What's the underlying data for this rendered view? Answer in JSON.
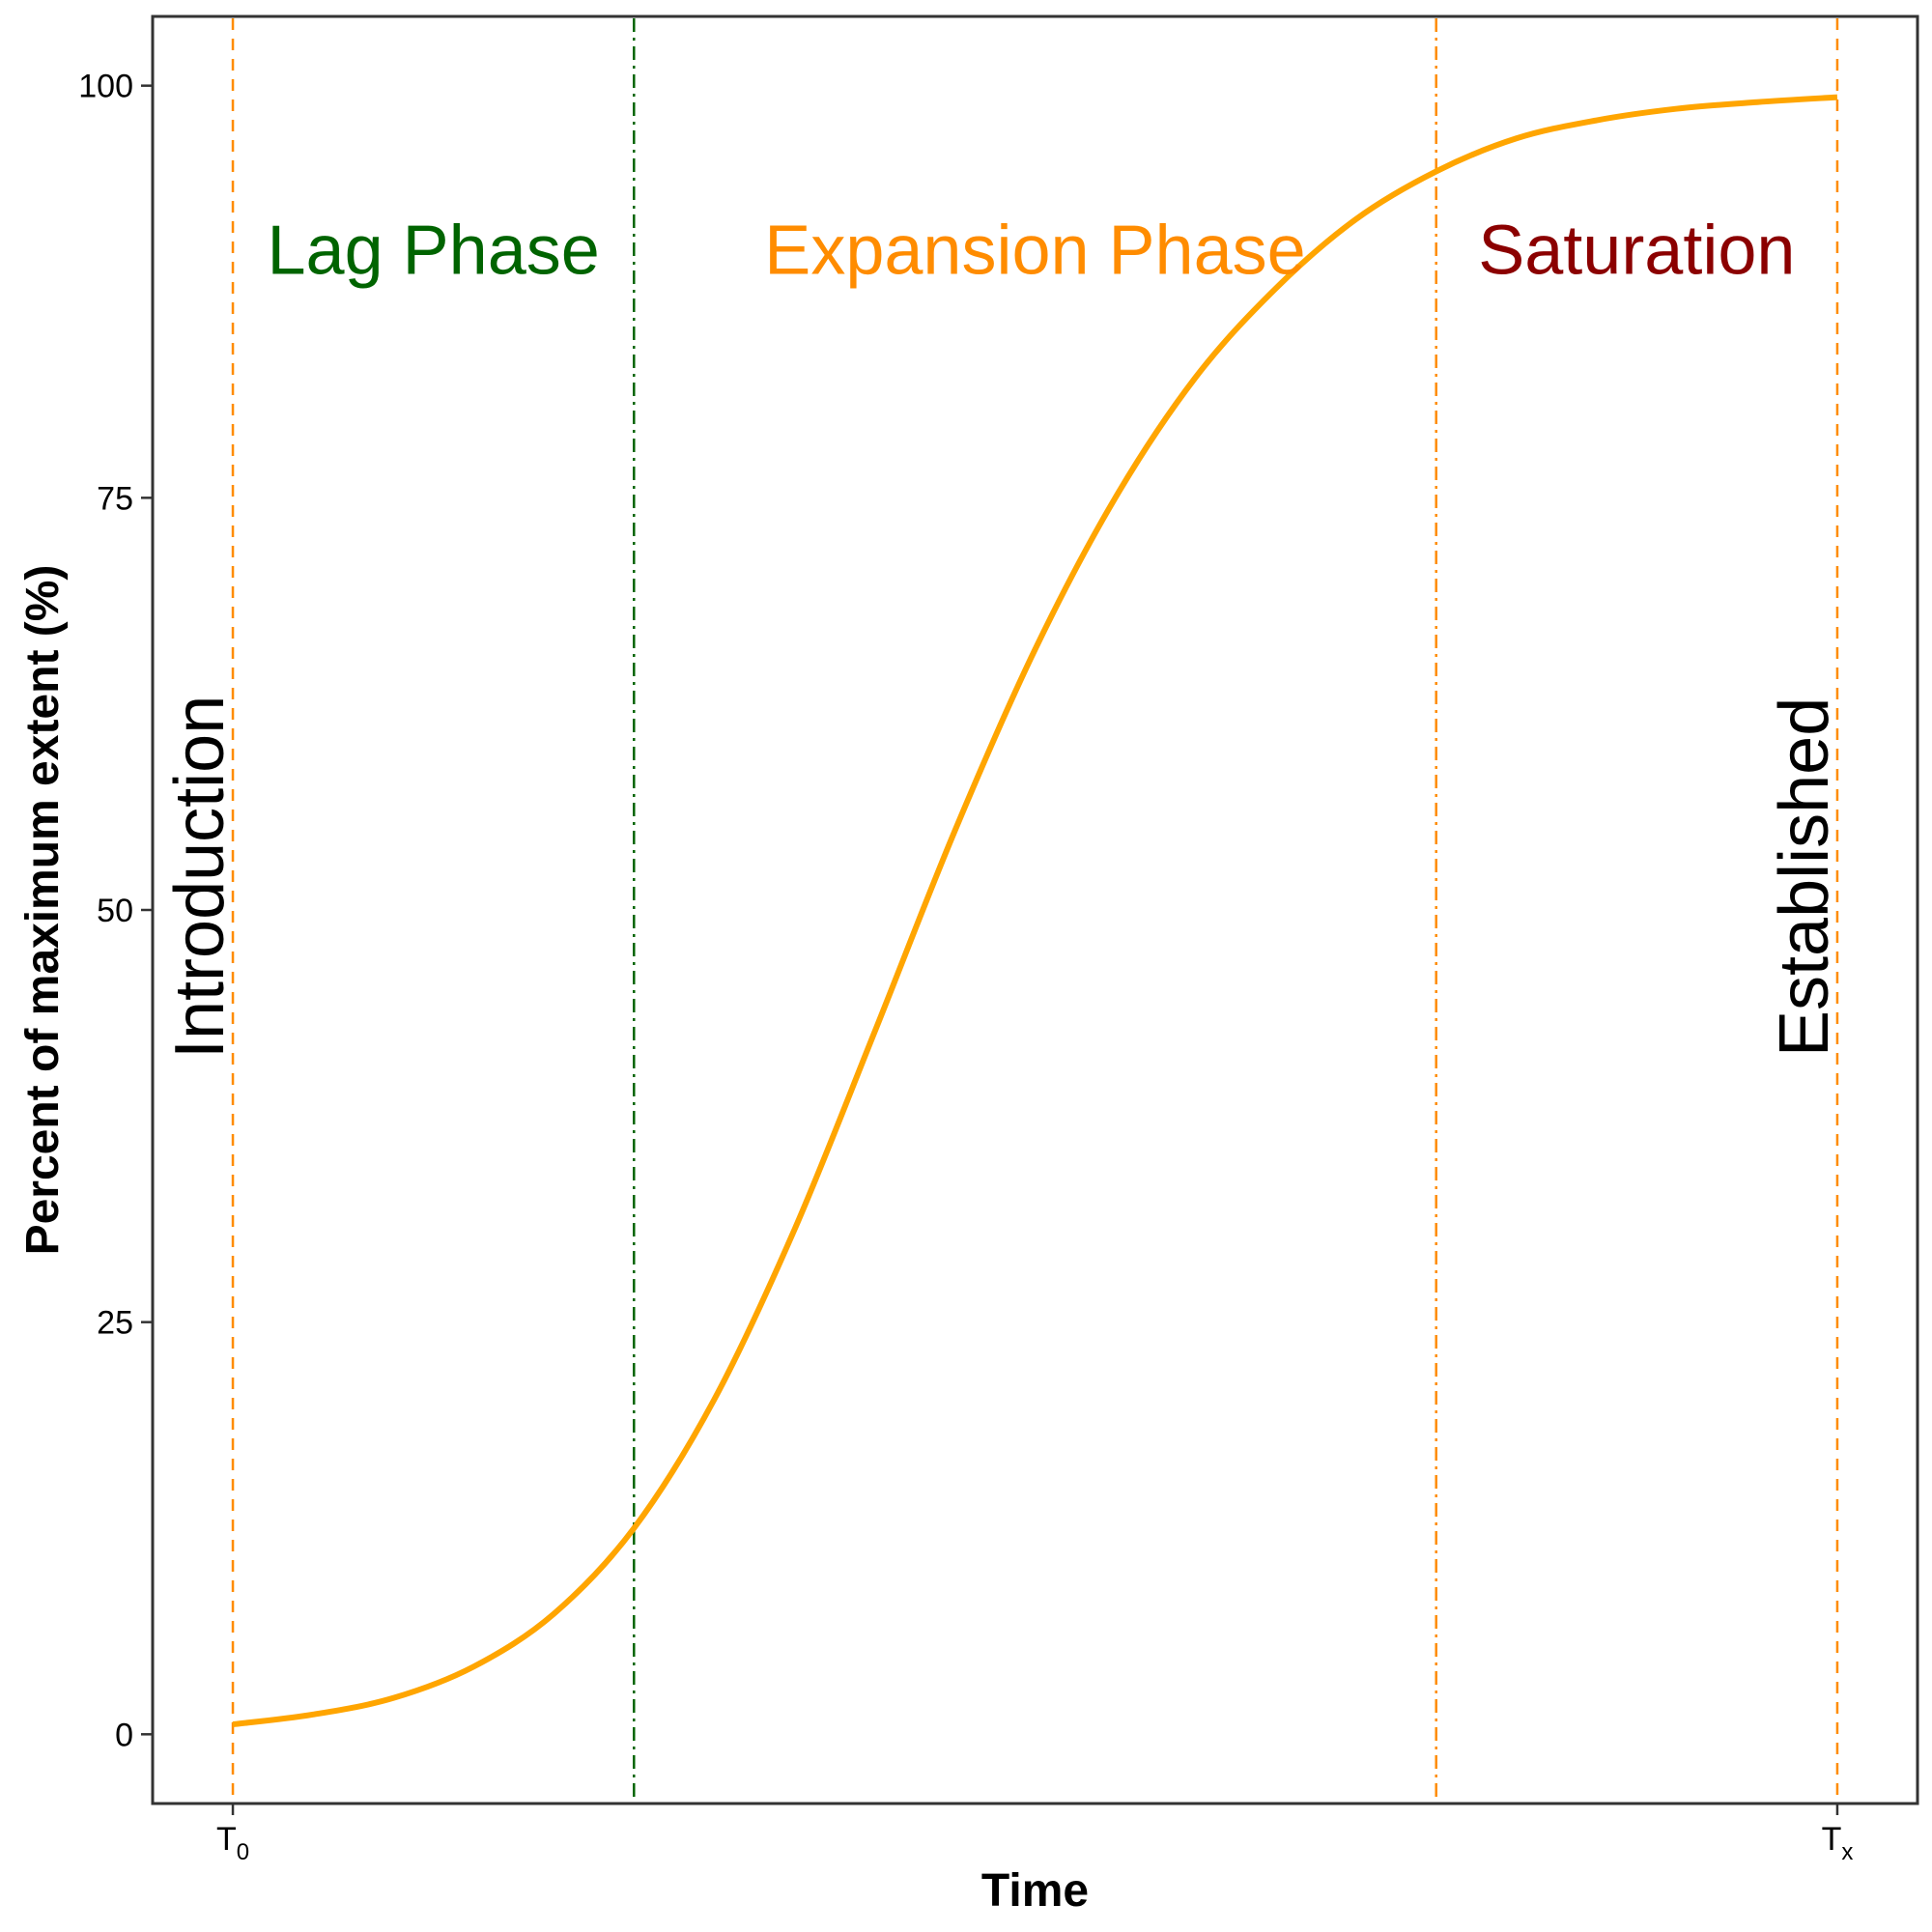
{
  "chart_data": {
    "type": "line",
    "title": "",
    "xlabel": "Time",
    "ylabel": "Percent of maximum extent (%)",
    "xlim": [
      -0.05,
      1.05
    ],
    "ylim": [
      -4.2,
      104.2
    ],
    "x_ticks": [
      {
        "x": 0,
        "base": "T",
        "sub": "0"
      },
      {
        "x": 1,
        "base": "T",
        "sub": "x"
      }
    ],
    "y_ticks": [
      0,
      25,
      50,
      75,
      100
    ],
    "grid": false,
    "series": [
      {
        "name": "",
        "color": "#FFA500",
        "x": [
          0,
          0.05,
          0.1,
          0.15,
          0.2,
          0.25,
          0.3,
          0.35,
          0.4,
          0.45,
          0.5,
          0.55,
          0.6,
          0.65,
          0.7,
          0.75,
          0.8,
          0.85,
          0.9,
          0.95,
          1
        ],
        "y": [
          0.6,
          1.2,
          2.2,
          4.1,
          7.3,
          12.5,
          20.3,
          30.6,
          42.6,
          54.8,
          65.8,
          75.0,
          82.3,
          87.7,
          91.9,
          94.8,
          96.8,
          97.9,
          98.6,
          99.0,
          99.3
        ]
      }
    ],
    "vlines": [
      {
        "x": 0,
        "color": "#FF8C00",
        "style": "dashed"
      },
      {
        "x": 0.25,
        "color": "#006400",
        "style": "dashdot"
      },
      {
        "x": 0.75,
        "color": "#FF8C00",
        "style": "dashdot"
      },
      {
        "x": 1,
        "color": "#FF8C00",
        "style": "dashed"
      }
    ],
    "annotations": [
      {
        "text": "Lag Phase",
        "x": 0.125,
        "y": 90,
        "color": "#006400",
        "rotate": false
      },
      {
        "text": "Expansion Phase",
        "x": 0.5,
        "y": 90,
        "color": "#FF8C00",
        "rotate": false
      },
      {
        "text": "Saturation",
        "x": 0.875,
        "y": 90,
        "color": "#8B0000",
        "rotate": false
      },
      {
        "text": "Introduction",
        "x": 0,
        "y": 52,
        "color": "#000000",
        "rotate": true
      },
      {
        "text": "Established",
        "x": 1,
        "y": 52,
        "color": "#000000",
        "rotate": true
      }
    ]
  }
}
